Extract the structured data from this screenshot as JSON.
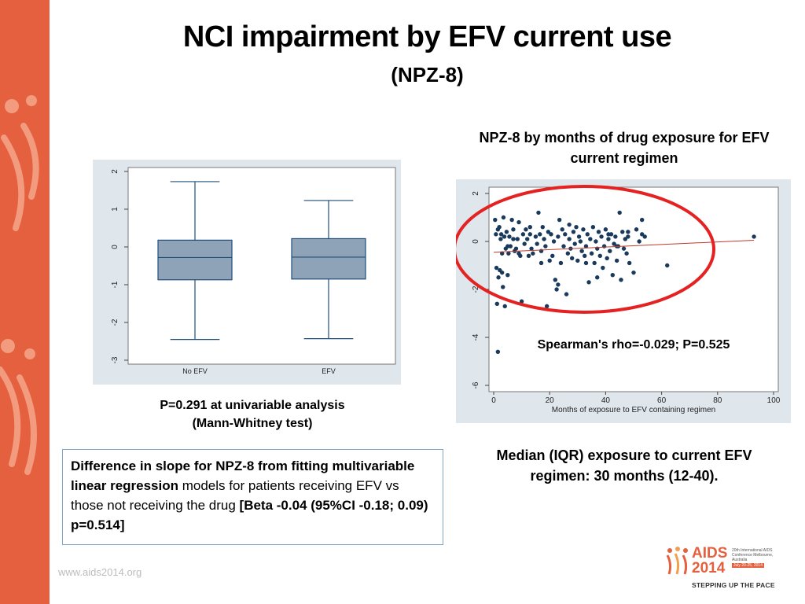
{
  "slide": {
    "title": "NCI impairment by EFV current use",
    "subtitle": "(NPZ-8)",
    "scatter_caption": "NPZ-8 by months of drug exposure for EFV current regimen",
    "pvalue_line1": "P=0.291 at univariable analysis",
    "pvalue_line2": "(Mann-Whitney test)",
    "difference": {
      "bold_lead": "Difference in slope for NPZ-8 from fitting multivariable linear regression",
      "plain": " models for patients receiving EFV vs those not receiving the drug ",
      "bold_tail": "[Beta -0.04 (95%CI -0.18; 0.09) p=0.514]"
    },
    "median_text": "Median (IQR) exposure to current EFV regimen: 30 months (12-40).",
    "url": "www.aids2014.org",
    "logo": {
      "name": "AIDS 2014",
      "conference": "20th International AIDS Conference Melbourne, Australia",
      "dates": "July 20-25, 2014",
      "tagline": "STEPPING UP THE PACE"
    }
  },
  "colors": {
    "accent": "#e4603f",
    "box_fill": "#8fa3b8",
    "box_line": "#1f4e79",
    "point": "#1a3a5c",
    "trend": "#c0392b",
    "ellipse": "#e52222"
  },
  "chart_data": [
    {
      "type": "box",
      "categories": [
        "No EFV",
        "EFV"
      ],
      "ylim": [
        -3,
        2
      ],
      "yticks": [
        "-3",
        "-2",
        "-1",
        "0",
        "1",
        "2"
      ],
      "boxes": [
        {
          "category": "No EFV",
          "min": -2.45,
          "q1": -0.87,
          "median": -0.28,
          "q3": 0.18,
          "max": 1.73
        },
        {
          "category": "EFV",
          "min": -2.43,
          "q1": -0.85,
          "median": -0.27,
          "q3": 0.22,
          "max": 1.23
        }
      ],
      "grid": false
    },
    {
      "type": "scatter",
      "xlabel": "Months of exposure to EFV containing regimen",
      "xlim": [
        0,
        100
      ],
      "ylim": [
        -6,
        2
      ],
      "xticks": [
        "0",
        "20",
        "40",
        "60",
        "80",
        "100"
      ],
      "yticks": [
        "-6",
        "-4",
        "-2",
        "0",
        "2"
      ],
      "annotation": "Spearman's rho=-0.029; P=0.525",
      "trend": {
        "x": [
          0,
          93
        ],
        "y": [
          -0.45,
          0.05
        ]
      },
      "points": [
        [
          0.5,
          0.9
        ],
        [
          0.8,
          0.3
        ],
        [
          1,
          -1.1
        ],
        [
          1.2,
          -2.6
        ],
        [
          1.5,
          0.5
        ],
        [
          1.7,
          -1.5
        ],
        [
          2,
          0.6
        ],
        [
          2.2,
          -1.2
        ],
        [
          2.5,
          0.1
        ],
        [
          2.7,
          0.3
        ],
        [
          3,
          -0.5
        ],
        [
          3.3,
          -1.9
        ],
        [
          3.5,
          1.0
        ],
        [
          3.8,
          0.2
        ],
        [
          4,
          -2.7
        ],
        [
          4.3,
          -0.3
        ],
        [
          4.6,
          0.4
        ],
        [
          5,
          -1.4
        ],
        [
          5.3,
          -0.5
        ],
        [
          5.6,
          0.2
        ],
        [
          6,
          -0.2
        ],
        [
          6.5,
          0.9
        ],
        [
          7,
          0.5
        ],
        [
          7.5,
          -0.4
        ],
        [
          8,
          -0.3
        ],
        [
          8.5,
          0.1
        ],
        [
          9,
          0.8
        ],
        [
          9.5,
          -0.6
        ],
        [
          10,
          -2.5
        ],
        [
          10.5,
          0.3
        ],
        [
          11,
          -0.1
        ],
        [
          11.5,
          0.5
        ],
        [
          12,
          0.1
        ],
        [
          12.5,
          -0.6
        ],
        [
          13,
          0.6
        ],
        [
          13.5,
          -0.3
        ],
        [
          14,
          -0.5
        ],
        [
          15,
          0.2
        ],
        [
          15.5,
          -0.1
        ],
        [
          16,
          1.2
        ],
        [
          16.5,
          0.3
        ],
        [
          17,
          -0.9
        ],
        [
          17.5,
          0.6
        ],
        [
          18,
          0.1
        ],
        [
          18.5,
          -0.2
        ],
        [
          19,
          -2.7
        ],
        [
          19.5,
          0.4
        ],
        [
          20,
          -0.8
        ],
        [
          20.5,
          0.3
        ],
        [
          21,
          -0.6
        ],
        [
          21.5,
          0.0
        ],
        [
          22,
          -1.6
        ],
        [
          22.5,
          -2.0
        ],
        [
          23,
          0.2
        ],
        [
          23.5,
          0.9
        ],
        [
          24,
          -0.9
        ],
        [
          24.5,
          0.5
        ],
        [
          25,
          -0.2
        ],
        [
          25.5,
          0.3
        ],
        [
          26,
          -2.2
        ],
        [
          26.5,
          -0.5
        ],
        [
          27,
          0.1
        ],
        [
          27.5,
          -0.3
        ],
        [
          28,
          -0.7
        ],
        [
          28.5,
          0.4
        ],
        [
          29,
          -0.1
        ],
        [
          29.5,
          0.6
        ],
        [
          30,
          -0.8
        ],
        [
          30.5,
          0.2
        ],
        [
          31,
          0.0
        ],
        [
          31.5,
          -0.4
        ],
        [
          32,
          0.5
        ],
        [
          32.5,
          -0.6
        ],
        [
          33,
          -0.2
        ],
        [
          33.5,
          0.3
        ],
        [
          34,
          -1.7
        ],
        [
          34.5,
          0.1
        ],
        [
          35,
          -0.5
        ],
        [
          35.5,
          0.6
        ],
        [
          36,
          -0.9
        ],
        [
          36.5,
          0.0
        ],
        [
          37,
          -0.3
        ],
        [
          37.5,
          0.4
        ],
        [
          38,
          -0.6
        ],
        [
          38.5,
          0.2
        ],
        [
          39,
          -1.1
        ],
        [
          39.5,
          -0.2
        ],
        [
          40,
          0.5
        ],
        [
          40.5,
          -0.7
        ],
        [
          41,
          0.1
        ],
        [
          41.5,
          -0.4
        ],
        [
          42,
          0.3
        ],
        [
          42.5,
          -1.4
        ],
        [
          43,
          -0.1
        ],
        [
          43.5,
          0.2
        ],
        [
          44,
          -0.8
        ],
        [
          44.5,
          -0.2
        ],
        [
          45,
          1.2
        ],
        [
          45.5,
          -1.6
        ],
        [
          46,
          0.4
        ],
        [
          46.5,
          -0.3
        ],
        [
          47,
          0.1
        ],
        [
          47.5,
          -0.5
        ],
        [
          48,
          0.2
        ],
        [
          48.5,
          -0.9
        ],
        [
          50,
          -1.3
        ],
        [
          51,
          0.5
        ],
        [
          52,
          0.0
        ],
        [
          53,
          0.3
        ],
        [
          54,
          0.2
        ],
        [
          62,
          -1.0
        ],
        [
          93,
          0.2
        ],
        [
          1.5,
          -4.6
        ],
        [
          3,
          -1.3
        ],
        [
          5,
          -0.2
        ],
        [
          7,
          0.1
        ],
        [
          9,
          -0.5
        ],
        [
          13,
          0.3
        ],
        [
          17,
          -0.4
        ],
        [
          23,
          -1.8
        ],
        [
          27,
          0.7
        ],
        [
          33,
          -0.9
        ],
        [
          37,
          -1.5
        ],
        [
          41,
          0.3
        ],
        [
          44,
          -0.2
        ],
        [
          48,
          0.4
        ],
        [
          53,
          0.9
        ]
      ]
    }
  ]
}
